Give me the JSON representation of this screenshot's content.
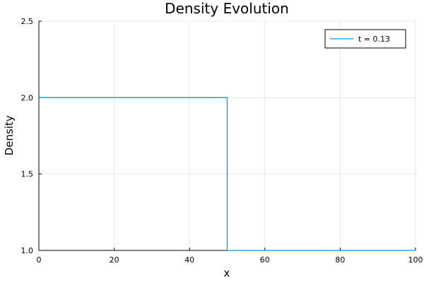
{
  "chart_data": {
    "type": "line",
    "title": "Density Evolution",
    "xlabel": "x",
    "ylabel": "Density",
    "xlim": [
      0,
      100
    ],
    "ylim": [
      1.0,
      2.5
    ],
    "x_ticks": [
      0,
      20,
      40,
      60,
      80,
      100
    ],
    "x_tick_labels": [
      "0",
      "20",
      "40",
      "60",
      "80",
      "100"
    ],
    "y_ticks": [
      1.0,
      1.5,
      2.0,
      2.5
    ],
    "y_tick_labels": [
      "1.0",
      "1.5",
      "2.0",
      "2.5"
    ],
    "grid": true,
    "legend_position": "top-right",
    "series": [
      {
        "name": "t = 0.13",
        "color": "#009AFA",
        "x": [
          0,
          50,
          50,
          100
        ],
        "y": [
          2.0,
          2.0,
          1.0,
          1.0
        ]
      }
    ]
  }
}
